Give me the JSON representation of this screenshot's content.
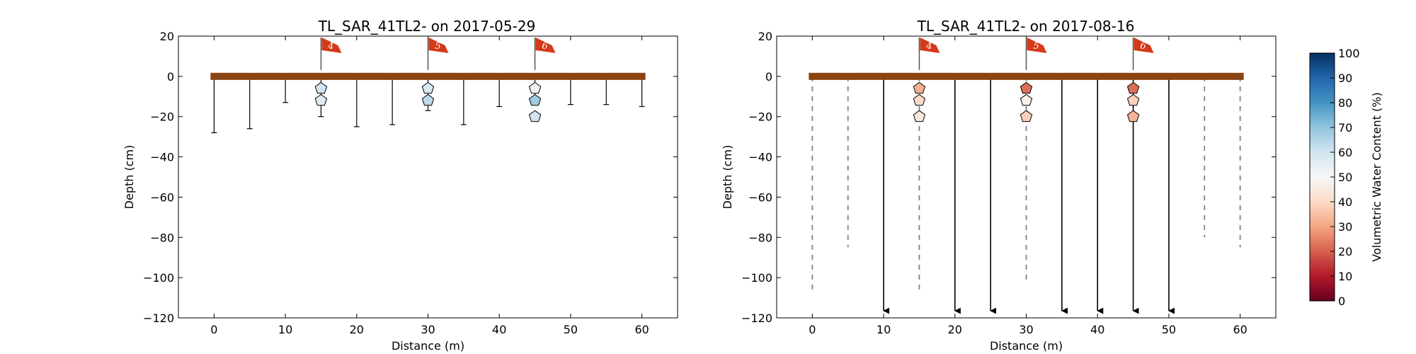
{
  "chart_data": [
    {
      "type": "scatter",
      "title": "TL_SAR_41TL2-  on 2017-05-29",
      "xlabel": "Distance (m)",
      "ylabel": "Depth (cm)",
      "xlim": [
        -5,
        65
      ],
      "ylim": [
        -120,
        20
      ],
      "xticks": [
        "0",
        "10",
        "20",
        "30",
        "40",
        "50",
        "60"
      ],
      "yticks": [
        "20",
        "0",
        "−20",
        "−40",
        "−60",
        "−80",
        "−100",
        "−120"
      ],
      "flags": [
        {
          "x": 15,
          "label": "4"
        },
        {
          "x": 30,
          "label": "5"
        },
        {
          "x": 45,
          "label": "6"
        }
      ],
      "probe_depths": [
        {
          "x": 0,
          "depth": -28
        },
        {
          "x": 5,
          "depth": -26
        },
        {
          "x": 10,
          "depth": -13
        },
        {
          "x": 15,
          "depth": -20
        },
        {
          "x": 20,
          "depth": -25
        },
        {
          "x": 25,
          "depth": -24
        },
        {
          "x": 30,
          "depth": -17
        },
        {
          "x": 35,
          "depth": -24
        },
        {
          "x": 40,
          "depth": -15
        },
        {
          "x": 45,
          "depth": -14
        },
        {
          "x": 50,
          "depth": -14
        },
        {
          "x": 55,
          "depth": -14
        },
        {
          "x": 60,
          "depth": -15
        }
      ],
      "sensors": [
        {
          "x": 15,
          "depth": -6,
          "vwc": 60
        },
        {
          "x": 15,
          "depth": -12,
          "vwc": 56
        },
        {
          "x": 30,
          "depth": -6,
          "vwc": 58
        },
        {
          "x": 30,
          "depth": -12,
          "vwc": 63
        },
        {
          "x": 45,
          "depth": -6,
          "vwc": 52
        },
        {
          "x": 45,
          "depth": -12,
          "vwc": 68
        },
        {
          "x": 45,
          "depth": -20,
          "vwc": 60
        }
      ]
    },
    {
      "type": "scatter",
      "title": "TL_SAR_41TL2-  on 2017-08-16",
      "xlabel": "Distance (m)",
      "ylabel": "Depth (cm)",
      "xlim": [
        -5,
        65
      ],
      "ylim": [
        -120,
        20
      ],
      "xticks": [
        "0",
        "10",
        "20",
        "30",
        "40",
        "50",
        "60"
      ],
      "yticks": [
        "20",
        "0",
        "−20",
        "−40",
        "−60",
        "−80",
        "−100",
        "−120"
      ],
      "flags": [
        {
          "x": 15,
          "label": "4"
        },
        {
          "x": 30,
          "label": "5"
        },
        {
          "x": 45,
          "label": "6"
        }
      ],
      "dashed_probes": [
        {
          "x": 0,
          "depth": -108
        },
        {
          "x": 5,
          "depth": -85
        },
        {
          "x": 15,
          "depth": -108
        },
        {
          "x": 30,
          "depth": -102
        },
        {
          "x": 55,
          "depth": -80
        },
        {
          "x": 60,
          "depth": -85
        }
      ],
      "arrow_probes": [
        10,
        20,
        25,
        35,
        40,
        45,
        50
      ],
      "sensors": [
        {
          "x": 15,
          "depth": -6,
          "vwc": 32
        },
        {
          "x": 15,
          "depth": -12,
          "vwc": 40
        },
        {
          "x": 15,
          "depth": -20,
          "vwc": 44
        },
        {
          "x": 30,
          "depth": -6,
          "vwc": 22
        },
        {
          "x": 30,
          "depth": -12,
          "vwc": 48
        },
        {
          "x": 30,
          "depth": -20,
          "vwc": 38
        },
        {
          "x": 45,
          "depth": -6,
          "vwc": 22
        },
        {
          "x": 45,
          "depth": -12,
          "vwc": 38
        },
        {
          "x": 45,
          "depth": -20,
          "vwc": 33
        }
      ]
    }
  ],
  "colorbar": {
    "label": "Volumetric Water Content (%)",
    "range": [
      0,
      100
    ],
    "ticks": [
      "0",
      "10",
      "20",
      "30",
      "40",
      "50",
      "60",
      "70",
      "80",
      "90",
      "100"
    ]
  }
}
